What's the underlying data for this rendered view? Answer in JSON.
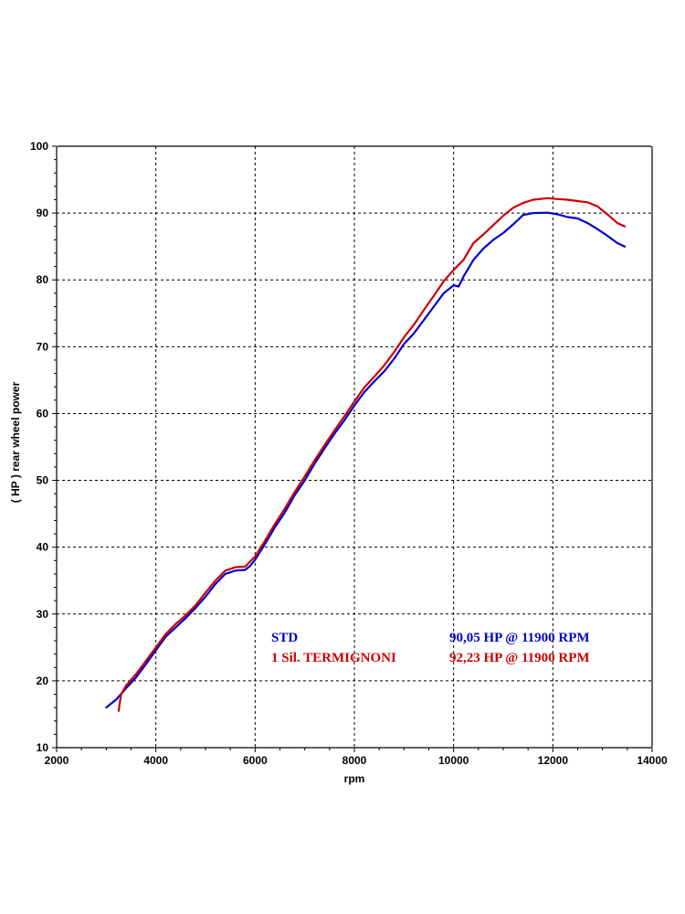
{
  "chart_data": {
    "type": "line",
    "title": "",
    "xlabel": "rpm",
    "ylabel": "( HP )  rear wheel power",
    "xlim": [
      2000,
      14000
    ],
    "ylim": [
      10,
      100
    ],
    "x_ticks": [
      "2000",
      "4000",
      "6000",
      "8000",
      "10000",
      "12000",
      "14000"
    ],
    "y_ticks": [
      "10",
      "20",
      "30",
      "40",
      "50",
      "60",
      "70",
      "80",
      "90",
      "100"
    ],
    "grid": true,
    "series": [
      {
        "name": "STD",
        "summary": "90,05 HP @ 11900 RPM",
        "color": "#0000cc",
        "x": [
          3000,
          3200,
          3400,
          3600,
          3800,
          4000,
          4200,
          4400,
          4600,
          4800,
          5000,
          5200,
          5400,
          5600,
          5800,
          5900,
          6000,
          6200,
          6400,
          6600,
          6800,
          7000,
          7200,
          7400,
          7600,
          7800,
          8000,
          8200,
          8400,
          8600,
          8800,
          9000,
          9200,
          9400,
          9600,
          9800,
          10000,
          10100,
          10200,
          10400,
          10600,
          10800,
          11000,
          11200,
          11400,
          11600,
          11900,
          12100,
          12300,
          12500,
          12700,
          12900,
          13100,
          13300,
          13450
        ],
        "y": [
          16.0,
          17.2,
          18.9,
          20.5,
          22.5,
          24.6,
          26.6,
          28.0,
          29.4,
          30.9,
          32.6,
          34.5,
          36.0,
          36.5,
          36.6,
          37.2,
          38.1,
          40.5,
          43.0,
          45.2,
          47.8,
          50.0,
          52.5,
          54.8,
          57.0,
          59.0,
          61.2,
          63.2,
          64.8,
          66.3,
          68.2,
          70.4,
          72.0,
          74.0,
          76.0,
          78.0,
          79.2,
          79.0,
          80.5,
          83.0,
          84.7,
          86.0,
          87.0,
          88.3,
          89.7,
          90.0,
          90.05,
          89.8,
          89.4,
          89.2,
          88.5,
          87.6,
          86.6,
          85.5,
          85.0
        ]
      },
      {
        "name": "1 Sil. TERMIGNONI",
        "summary": "92,23 HP @ 11900 RPM",
        "color": "#cc0000",
        "x": [
          3250,
          3300,
          3400,
          3600,
          3800,
          4000,
          4200,
          4400,
          4600,
          4800,
          5000,
          5200,
          5400,
          5600,
          5800,
          6000,
          6200,
          6400,
          6600,
          6800,
          7000,
          7200,
          7400,
          7600,
          7800,
          8000,
          8200,
          8400,
          8600,
          8800,
          9000,
          9200,
          9400,
          9600,
          9800,
          10000,
          10200,
          10400,
          10600,
          10800,
          11000,
          11200,
          11400,
          11600,
          11900,
          12100,
          12300,
          12500,
          12700,
          12900,
          13100,
          13300,
          13450
        ],
        "y": [
          15.5,
          18.0,
          19.3,
          21.0,
          23.0,
          25.0,
          27.0,
          28.5,
          29.8,
          31.3,
          33.2,
          35.0,
          36.5,
          37.0,
          37.1,
          38.6,
          41.0,
          43.5,
          45.8,
          48.3,
          50.6,
          53.0,
          55.3,
          57.5,
          59.6,
          61.8,
          63.9,
          65.5,
          67.2,
          69.2,
          71.4,
          73.3,
          75.5,
          77.6,
          79.8,
          81.5,
          83.0,
          85.5,
          86.8,
          88.2,
          89.6,
          90.8,
          91.5,
          92.0,
          92.23,
          92.1,
          92.0,
          91.8,
          91.6,
          91.0,
          89.8,
          88.5,
          88.0
        ]
      }
    ]
  }
}
